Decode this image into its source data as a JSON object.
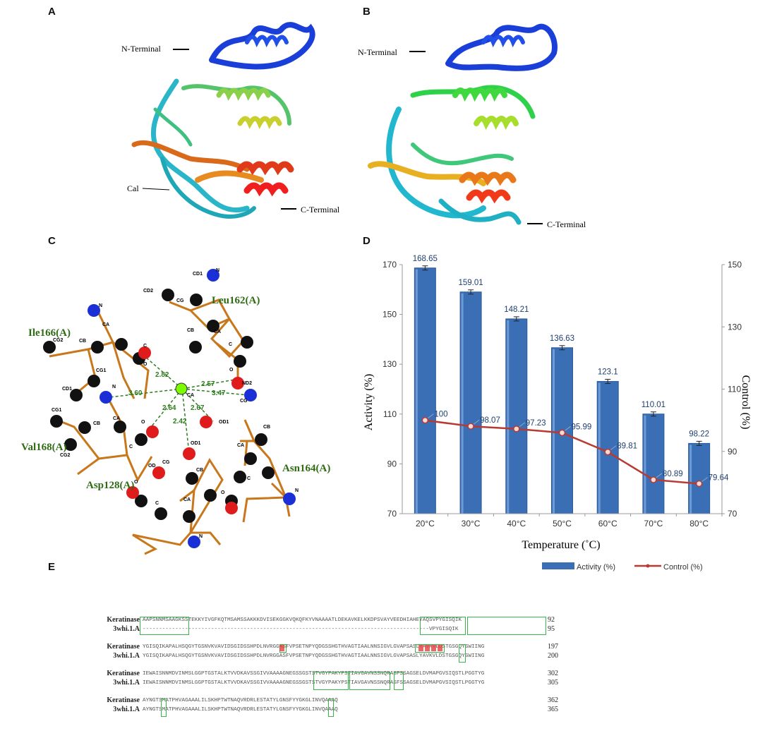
{
  "panels": {
    "a": "A",
    "b": "B",
    "c": "C",
    "d": "D",
    "e": "E"
  },
  "protein_a": {
    "n_terminal": "N-Terminal",
    "c_terminal": "C-Terminal",
    "cal": "Cal"
  },
  "protein_b": {
    "n_terminal": "N-Terminal",
    "c_terminal": "C-Terminal"
  },
  "ligand": {
    "residues": {
      "leu162": "Leu162(A)",
      "ile166": "Ile166(A)",
      "val168": "Val168(A)",
      "asp128": "Asp128(A)",
      "asn164": "Asn164(A)"
    },
    "distances": [
      "2.82",
      "2.57",
      "3.60",
      "3.47",
      "2.64",
      "2.67",
      "2.42"
    ],
    "colors": {
      "carbon": "#111111",
      "oxygen": "#e01b1b",
      "nitrogen": "#1b2fd6",
      "calcium": "#7CFC00",
      "bond": "#c8771a",
      "hbond": "#2e7d1e",
      "label": "#2e6b12"
    }
  },
  "chart_data": {
    "type": "bar",
    "categories": [
      "20°C",
      "30°C",
      "40°C",
      "50°C",
      "60°C",
      "70°C",
      "80°C"
    ],
    "series": [
      {
        "name": "Activity (%)",
        "type": "bar",
        "axis": "left",
        "values": [
          168.65,
          159.01,
          148.21,
          136.63,
          123.1,
          110.01,
          98.22
        ],
        "labels": [
          "168.65",
          "159.01",
          "148.21",
          "136.63",
          "123.1",
          "110.01",
          "98.22"
        ],
        "color": "#3a6fb5"
      },
      {
        "name": "Control (%)",
        "type": "line",
        "axis": "right",
        "values": [
          100,
          98.07,
          97.23,
          95.99,
          89.81,
          80.89,
          79.64
        ],
        "labels": [
          "100",
          "98.07",
          "97.23",
          "95.99",
          "89.81",
          "80.89",
          "79.64"
        ],
        "color": "#b83a32"
      }
    ],
    "xlabel": "Temperature  (˚C)",
    "ylabel": "Activity   (%)",
    "y2label": "Control   (%)",
    "ylim": [
      70,
      170
    ],
    "y2lim": [
      70,
      150
    ],
    "yticks": [
      "70",
      "90",
      "110",
      "130",
      "150",
      "170"
    ],
    "y2ticks": [
      "70",
      "90",
      "110",
      "130",
      "150"
    ],
    "legend_position": "bottom"
  },
  "alignment": {
    "blocks": [
      {
        "rows": [
          {
            "name": "Keratinase",
            "seq": "AAPSNNMSAAGKSSTEKKYIVGFKQTMSAMSSAKKKDVISEKGGKVQKQFKYVNAAAATLDEKAVKELKKDPSVAYVEEDHIAHEYAQSVPYGISQIK",
            "end": "92"
          },
          {
            "name": "3whi.1.A",
            "seq": "----------------------------------------------------------------------------------------VPYGISQIK",
            "end": "95"
          }
        ]
      },
      {
        "rows": [
          {
            "name": "Keratinase",
            "seq": "YGISQIKAPALHSQGYTGSNVKVAVIDSGIDSSHPDLNVRGGASFVPSETNPYQDGSSHGTHVAGTIAALNNSIGVLGVAPSASLYAVKVLDSTGSGQYSWIING",
            "end": "197"
          },
          {
            "name": "3whi.1.A",
            "seq": "YGISQIKAPALHSQGYTGSNVKVAVIDSGIDSSHPDLNVRGGASFVPSETNPYQDGSSHGTHVAGTIAALNNSIGVLGVAPSASLYAVKVLDSTGSGQYSWIING",
            "end": "200"
          }
        ]
      },
      {
        "rows": [
          {
            "name": "Keratinase",
            "seq": "IEWAISNNMDVINMSLGGPTGSTALKTVVDKAVSSGIVVAAAAGNEGSSGSTSTVGYPAKYPSTIAVGAVNSSNQRASFSSAGSELDVMAPGVSIQSTLPGGTYG",
            "end": "302"
          },
          {
            "name": "3whi.1.A",
            "seq": "IEWAISNNMDVINMSLGGPTGSTALKTVVDKAVSSGIVVAAAAGNEGSSGSTSTVGYPAKYPSTIAVGAVNSSNQRASFSSAGSELDVMAPGVSIQSTLPGGTYG",
            "end": "305"
          }
        ]
      },
      {
        "rows": [
          {
            "name": "Keratinase",
            "seq": "AYNGTSMATPHVAGAAALILSKHPTWTNAQVRDRLESTATYLGNSFYYGKGLINVQAAAQ",
            "end": "362"
          },
          {
            "name": "3whi.1.A",
            "seq": "AYNGTSMATPHVAGAAALILSKHPTWTNAQVRDRLESTATYLGNSFYYGKGLINVQAAAQ",
            "end": "365"
          }
        ]
      }
    ]
  }
}
